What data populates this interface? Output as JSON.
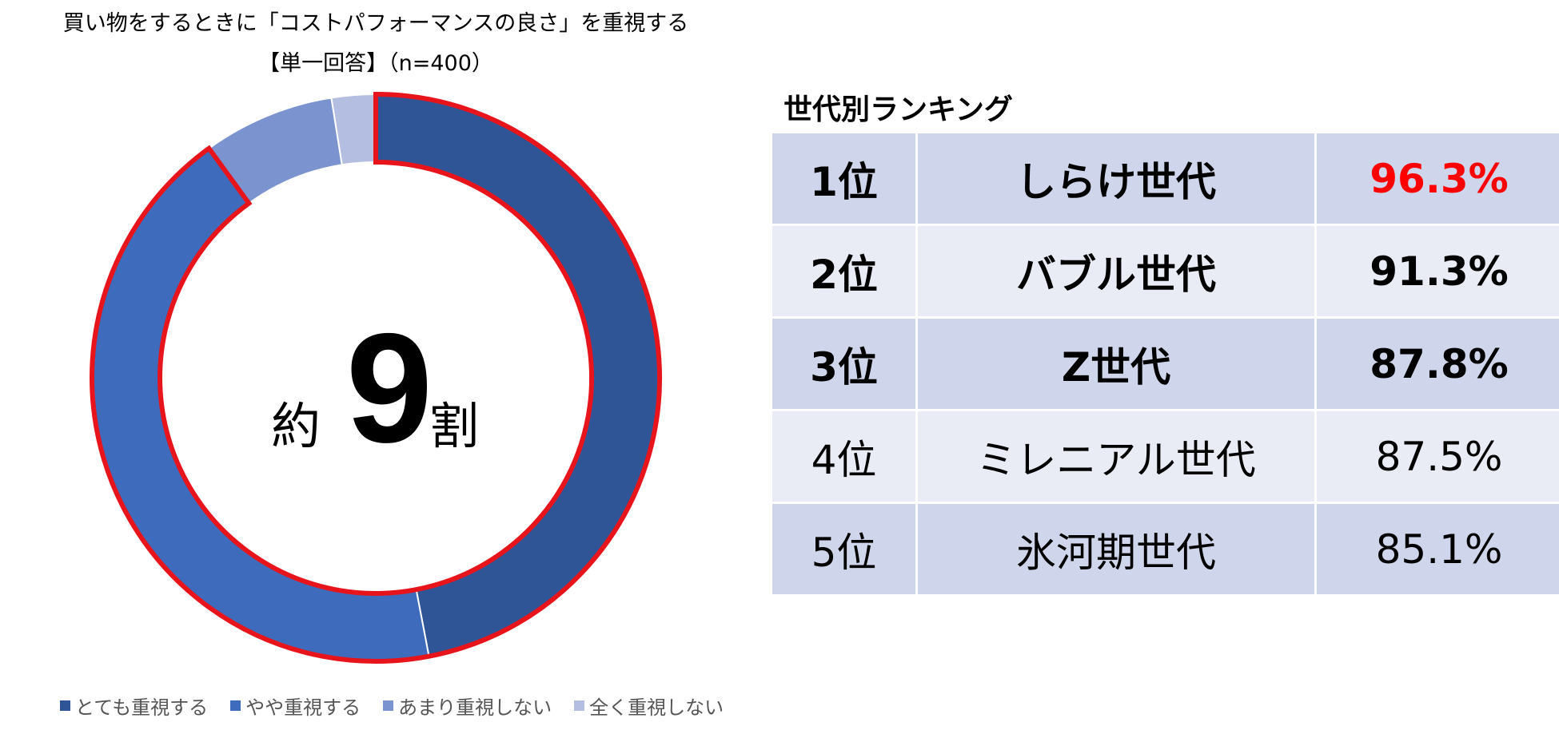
{
  "chart_data": [
    {
      "type": "pie",
      "title": "買い物をするときに「コストパフォーマンスの良さ」を重視する",
      "subtitle": "【単一回答】（n=400）",
      "categories": [
        "とても重視する",
        "やや重視する",
        "あまり重視しない",
        "全く重視しない"
      ],
      "values": [
        47,
        43,
        7.5,
        2.5
      ],
      "colors": [
        "#2f5597",
        "#3f6bbd",
        "#7b93cf",
        "#b3bee0"
      ],
      "highlight_color": "#e8141c",
      "highlight_categories": [
        "とても重視する",
        "やや重視する"
      ],
      "center_label": {
        "prefix": "約",
        "number": "9",
        "suffix": "割"
      },
      "legend": "bottom"
    },
    {
      "type": "table",
      "title": "世代別ランキング",
      "rows": [
        {
          "rank": "1位",
          "generation": "しらけ世代",
          "pct": "96.3%",
          "bold": true,
          "pct_color": "#ff0000"
        },
        {
          "rank": "2位",
          "generation": "バブル世代",
          "pct": "91.3%",
          "bold": true,
          "pct_color": "#000000"
        },
        {
          "rank": "3位",
          "generation": "Z世代",
          "pct": "87.8%",
          "bold": true,
          "pct_color": "#000000"
        },
        {
          "rank": "4位",
          "generation": "ミレニアル世代",
          "pct": "87.5%",
          "bold": false,
          "pct_color": "#000000"
        },
        {
          "rank": "5位",
          "generation": "氷河期世代",
          "pct": "85.1%",
          "bold": false,
          "pct_color": "#000000"
        }
      ]
    }
  ]
}
